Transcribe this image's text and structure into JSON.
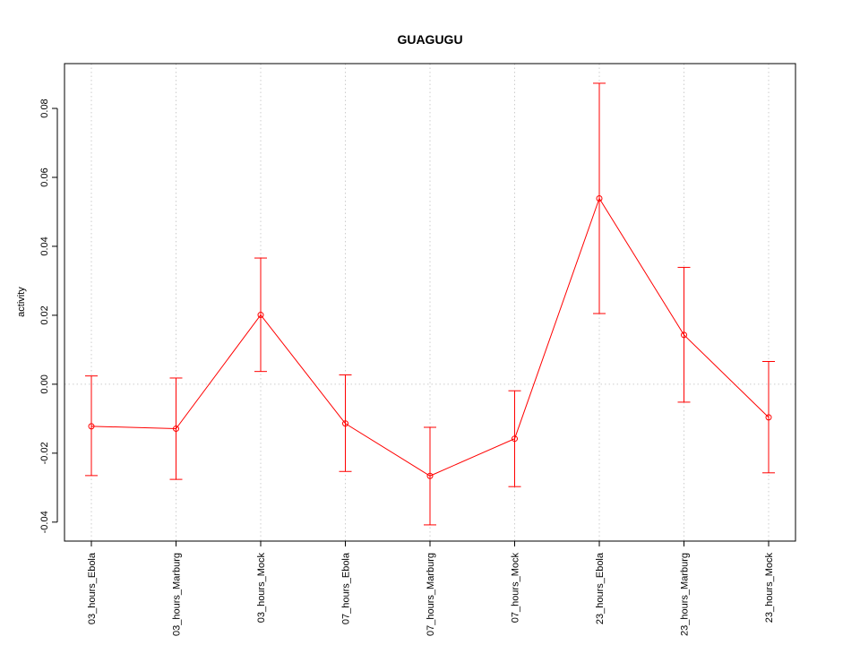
{
  "chart_data": {
    "type": "line",
    "title": "GUAGUGU",
    "xlabel": "",
    "ylabel": "activity",
    "categories": [
      "03_hours_Ebola",
      "03_hours_Marburg",
      "03_hours_Mock",
      "07_hours_Ebola",
      "07_hours_Marburg",
      "07_hours_Mock",
      "23_hours_Ebola",
      "23_hours_Marburg",
      "23_hours_Mock"
    ],
    "series": [
      {
        "values": [
          -0.0122,
          -0.0129,
          0.0201,
          -0.0114,
          -0.0266,
          -0.0158,
          0.0539,
          0.0143,
          -0.0096
        ],
        "error_low": [
          -0.0265,
          -0.0276,
          0.0037,
          -0.0253,
          -0.0408,
          -0.0297,
          0.0205,
          -0.0052,
          -0.0257
        ],
        "error_high": [
          0.0024,
          0.0018,
          0.0366,
          0.0027,
          -0.0125,
          -0.0019,
          0.0873,
          0.0339,
          0.0066
        ],
        "color": "#ff0000"
      }
    ],
    "yticks": [
      -0.04,
      -0.02,
      0.0,
      0.02,
      0.04,
      0.06,
      0.08
    ],
    "ytick_labels": [
      "-0.04",
      "-0.02",
      "0.00",
      "0.02",
      "0.04",
      "0.06",
      "0.08"
    ],
    "ylim": [
      -0.0455,
      0.093
    ],
    "grid": true,
    "reference_line_y": 0.0
  }
}
